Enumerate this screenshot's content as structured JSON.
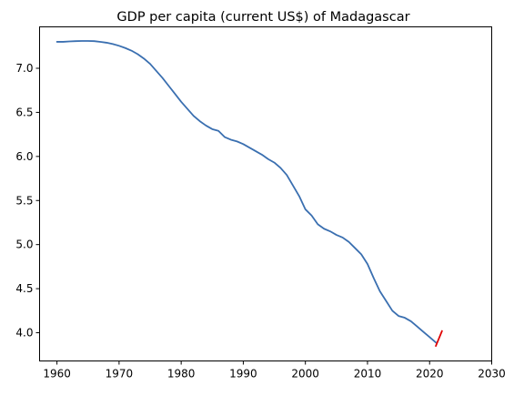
{
  "chart_data": {
    "type": "line",
    "title": "GDP per capita (current US$) of Madagascar",
    "xlabel": "",
    "ylabel": "",
    "xlim": [
      1957.2,
      2030
    ],
    "ylim": [
      3.68,
      7.47
    ],
    "x_ticks": [
      1960,
      1970,
      1980,
      1990,
      2000,
      2010,
      2020,
      2030
    ],
    "y_ticks": [
      4.0,
      4.5,
      5.0,
      5.5,
      6.0,
      6.5,
      7.0
    ],
    "x_tick_labels": [
      "1960",
      "1970",
      "1980",
      "1990",
      "2000",
      "2010",
      "2020",
      "2030"
    ],
    "y_tick_labels": [
      "4.0",
      "4.5",
      "5.0",
      "5.5",
      "6.0",
      "6.5",
      "7.0"
    ],
    "grid": false,
    "series": [
      {
        "color": "#3a6fb0",
        "x": [
          1960,
          1961,
          1962,
          1963,
          1964,
          1965,
          1966,
          1967,
          1968,
          1969,
          1970,
          1971,
          1972,
          1973,
          1974,
          1975,
          1976,
          1977,
          1978,
          1979,
          1980,
          1981,
          1982,
          1983,
          1984,
          1985,
          1986,
          1987,
          1988,
          1989,
          1990,
          1991,
          1992,
          1993,
          1994,
          1995,
          1996,
          1997,
          1998,
          1999,
          2000,
          2001,
          2002,
          2003,
          2004,
          2005,
          2006,
          2007,
          2008,
          2009,
          2010,
          2011,
          2012,
          2013,
          2014,
          2015,
          2016,
          2017,
          2018,
          2019,
          2020,
          2021
        ],
        "y": [
          7.3,
          7.3,
          7.305,
          7.308,
          7.31,
          7.31,
          7.308,
          7.3,
          7.29,
          7.275,
          7.255,
          7.23,
          7.2,
          7.16,
          7.11,
          7.05,
          6.97,
          6.89,
          6.8,
          6.71,
          6.62,
          6.54,
          6.46,
          6.4,
          6.35,
          6.31,
          6.29,
          6.22,
          6.19,
          6.17,
          6.14,
          6.1,
          6.06,
          6.02,
          5.97,
          5.93,
          5.87,
          5.79,
          5.67,
          5.55,
          5.4,
          5.33,
          5.23,
          5.18,
          5.15,
          5.11,
          5.08,
          5.03,
          4.96,
          4.89,
          4.78,
          4.62,
          4.47,
          4.36,
          4.25,
          4.19,
          4.17,
          4.13,
          4.07,
          4.01,
          3.95,
          3.89
        ]
      },
      {
        "color": "#e00000",
        "x": [
          2021,
          2022
        ],
        "y": [
          3.85,
          4.02
        ]
      }
    ]
  }
}
